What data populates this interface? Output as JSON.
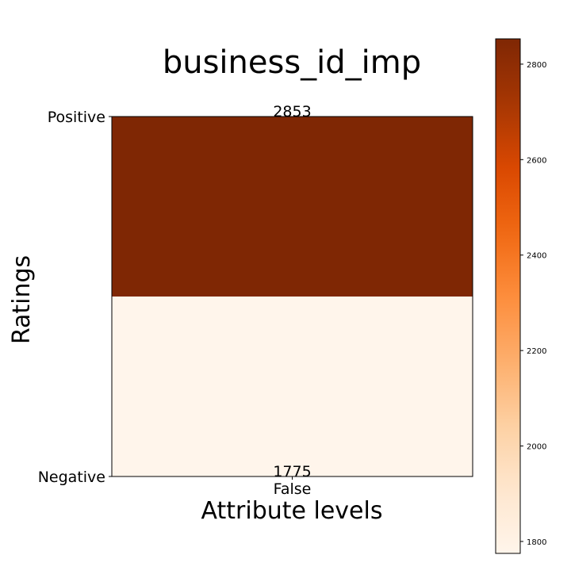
{
  "chart_data": {
    "type": "heatmap",
    "title": "business_id_imp",
    "xlabel": "Attribute levels",
    "ylabel": "Ratings",
    "x_categories": [
      "False"
    ],
    "y_categories": [
      "Positive",
      "Negative"
    ],
    "cells": [
      {
        "x": "False",
        "y": "Positive",
        "value": 2853,
        "label": "2853"
      },
      {
        "x": "False",
        "y": "Negative",
        "value": 1775,
        "label": "1775"
      }
    ],
    "colormap": "Oranges",
    "colorbar": {
      "vmin": 1775,
      "vmax": 2853,
      "ticks": [
        1800,
        2000,
        2200,
        2400,
        2600,
        2800
      ],
      "tick_labels": [
        "1800",
        "2000",
        "2200",
        "2400",
        "2600",
        "2800"
      ]
    },
    "grid": false,
    "legend": "none",
    "colors": {
      "high": "#7f2704",
      "low": "#fff5eb"
    }
  }
}
